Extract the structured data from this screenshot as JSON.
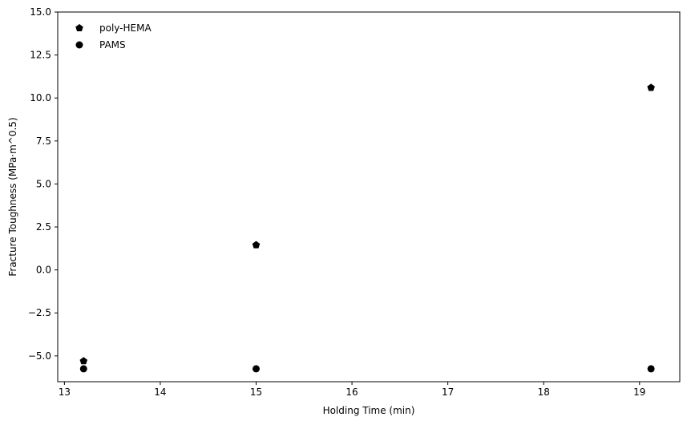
{
  "chart_data": {
    "type": "scatter",
    "title": "",
    "xlabel": "Holding Time (min)",
    "ylabel": "Fracture Toughness (MPa·m^0.5)",
    "xlim": [
      12.93,
      19.42
    ],
    "ylim": [
      -6.5,
      15.0
    ],
    "xticks": [
      13,
      14,
      15,
      16,
      17,
      18,
      19
    ],
    "xtick_labels": [
      "13",
      "14",
      "15",
      "16",
      "17",
      "18",
      "19"
    ],
    "yticks": [
      -5.0,
      -2.5,
      0.0,
      2.5,
      5.0,
      7.5,
      10.0,
      12.5,
      15.0
    ],
    "ytick_labels": [
      "−5.0",
      "−2.5",
      "0.0",
      "2.5",
      "5.0",
      "7.5",
      "10.0",
      "12.5",
      "15.0"
    ],
    "grid": false,
    "legend_position": "top-left",
    "series": [
      {
        "name": "poly-HEMA",
        "marker": "pentagon",
        "color": "#000000",
        "x": [
          13.2,
          15.0,
          19.12
        ],
        "y": [
          -5.3,
          1.45,
          10.6
        ]
      },
      {
        "name": "PAMS",
        "marker": "circle",
        "color": "#000000",
        "x": [
          13.2,
          15.0,
          19.12
        ],
        "y": [
          -5.75,
          -5.75,
          -5.75
        ]
      }
    ]
  }
}
